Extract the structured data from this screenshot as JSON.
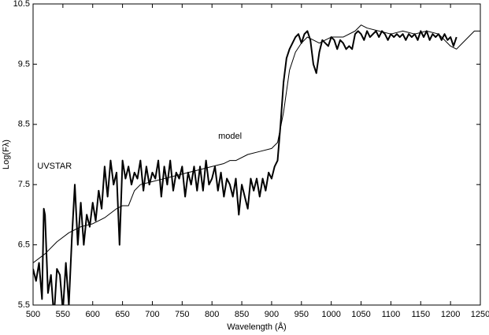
{
  "chart_data": {
    "type": "line",
    "xlabel": "Wavelength (Å)",
    "ylabel": "Log(Fλ)",
    "xlim": [
      500,
      1250
    ],
    "xticks": [
      500,
      550,
      600,
      650,
      700,
      750,
      800,
      850,
      900,
      950,
      1000,
      1050,
      1100,
      1150,
      1200,
      1250
    ],
    "ylim": [
      5.5,
      10.5
    ],
    "yticks": [
      5.5,
      6.5,
      7.5,
      8.5,
      9.5,
      10.5
    ],
    "series": [
      {
        "name": "UVSTAR",
        "color": "#000000",
        "x": [
          500,
          505,
          510,
          515,
          518,
          520,
          525,
          530,
          535,
          540,
          545,
          550,
          555,
          560,
          565,
          570,
          575,
          580,
          585,
          590,
          595,
          600,
          605,
          610,
          615,
          620,
          625,
          630,
          635,
          640,
          645,
          650,
          655,
          660,
          665,
          670,
          675,
          680,
          685,
          690,
          695,
          700,
          705,
          710,
          715,
          720,
          725,
          730,
          735,
          740,
          745,
          750,
          755,
          760,
          765,
          770,
          775,
          780,
          785,
          790,
          795,
          800,
          805,
          810,
          815,
          820,
          825,
          830,
          835,
          840,
          845,
          850,
          855,
          860,
          865,
          870,
          875,
          880,
          885,
          890,
          895,
          900,
          905,
          910,
          915,
          920,
          925,
          930,
          935,
          940,
          945,
          950,
          955,
          960,
          965,
          970,
          975,
          980,
          985,
          990,
          995,
          1000,
          1005,
          1010,
          1015,
          1020,
          1025,
          1030,
          1035,
          1040,
          1045,
          1050,
          1055,
          1060,
          1065,
          1070,
          1075,
          1080,
          1085,
          1090,
          1095,
          1100,
          1105,
          1110,
          1115,
          1120,
          1125,
          1130,
          1135,
          1140,
          1145,
          1150,
          1155,
          1160,
          1165,
          1170,
          1175,
          1180,
          1185,
          1190,
          1195,
          1200,
          1205,
          1210
        ],
        "values": [
          6.1,
          5.9,
          6.2,
          5.6,
          7.1,
          7.0,
          5.7,
          6.0,
          5.3,
          6.1,
          6.0,
          5.4,
          6.2,
          5.5,
          6.6,
          7.5,
          6.5,
          7.2,
          6.5,
          7.0,
          6.8,
          7.2,
          6.9,
          7.4,
          7.1,
          7.8,
          7.3,
          7.9,
          7.5,
          7.7,
          6.5,
          7.9,
          7.6,
          7.8,
          7.5,
          7.7,
          7.6,
          7.9,
          7.4,
          7.8,
          7.5,
          7.7,
          7.6,
          7.9,
          7.3,
          7.8,
          7.5,
          7.9,
          7.4,
          7.7,
          7.6,
          7.8,
          7.3,
          7.7,
          7.5,
          7.8,
          7.4,
          7.8,
          7.4,
          7.9,
          7.5,
          7.6,
          7.8,
          7.4,
          7.7,
          7.3,
          7.6,
          7.5,
          7.3,
          7.6,
          7.0,
          7.5,
          7.3,
          7.1,
          7.6,
          7.4,
          7.6,
          7.3,
          7.6,
          7.4,
          7.7,
          7.6,
          7.8,
          7.9,
          8.5,
          9.2,
          9.6,
          9.75,
          9.85,
          9.95,
          10.0,
          9.85,
          10.0,
          10.05,
          9.9,
          9.5,
          9.35,
          9.7,
          9.9,
          9.85,
          9.8,
          9.95,
          9.9,
          9.75,
          9.9,
          9.85,
          9.75,
          9.8,
          9.75,
          10.0,
          10.05,
          10.0,
          9.9,
          10.05,
          9.95,
          10.0,
          10.05,
          9.95,
          10.05,
          10.0,
          9.9,
          10.0,
          9.95,
          10.0,
          9.95,
          10.0,
          9.9,
          10.0,
          9.95,
          10.0,
          9.9,
          10.05,
          9.95,
          10.05,
          9.9,
          10.0,
          9.95,
          10.0,
          9.9,
          10.0,
          9.9,
          9.95,
          9.8,
          9.95
        ]
      },
      {
        "name": "model",
        "color": "#000000",
        "x": [
          500,
          520,
          540,
          560,
          580,
          600,
          620,
          640,
          650,
          660,
          670,
          680,
          700,
          720,
          740,
          760,
          780,
          800,
          820,
          830,
          840,
          860,
          880,
          900,
          910,
          920,
          930,
          940,
          950,
          960,
          970,
          980,
          990,
          1000,
          1020,
          1040,
          1050,
          1060,
          1080,
          1100,
          1120,
          1140,
          1160,
          1180,
          1200,
          1210,
          1220,
          1240,
          1250
        ],
        "values": [
          6.2,
          6.35,
          6.55,
          6.7,
          6.8,
          6.85,
          6.95,
          7.1,
          7.15,
          7.15,
          7.4,
          7.5,
          7.55,
          7.6,
          7.65,
          7.7,
          7.75,
          7.8,
          7.85,
          7.9,
          7.9,
          8.0,
          8.05,
          8.1,
          8.2,
          8.7,
          9.4,
          9.7,
          9.85,
          9.95,
          9.9,
          9.85,
          9.9,
          9.95,
          9.95,
          10.05,
          10.15,
          10.1,
          10.05,
          10.0,
          10.05,
          10.0,
          10.05,
          10.0,
          9.8,
          9.75,
          9.85,
          10.05,
          10.05
        ]
      }
    ]
  }
}
